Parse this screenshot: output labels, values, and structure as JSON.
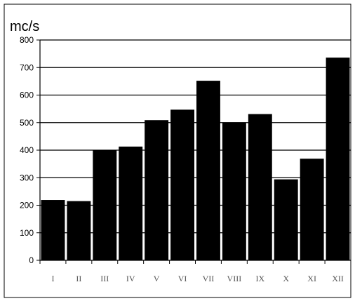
{
  "chart_data": {
    "type": "bar",
    "ylabel": "mc/s",
    "categories": [
      "I",
      "II",
      "III",
      "IV",
      "V",
      "VI",
      "VII",
      "VIII",
      "IX",
      "X",
      "XI",
      "XII"
    ],
    "values": [
      219,
      215,
      401,
      413,
      509,
      547,
      652,
      501,
      531,
      294,
      369,
      736
    ],
    "ylim": [
      0,
      800
    ],
    "yticks": [
      0,
      100,
      200,
      300,
      400,
      500,
      600,
      700,
      800
    ],
    "grid": true,
    "legend": "none",
    "colors": {
      "bar": "#000000",
      "grid": "#000000",
      "xtick_text": "#555555"
    }
  }
}
